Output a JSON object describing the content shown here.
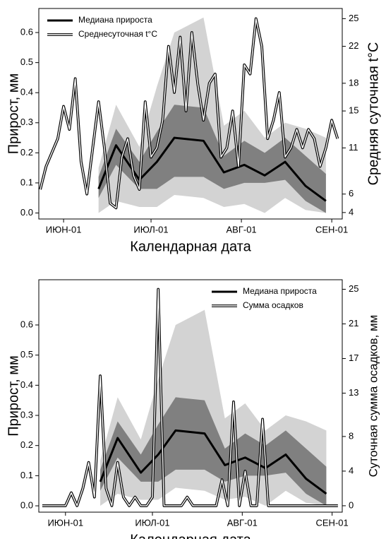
{
  "chart_data": [
    {
      "type": "line",
      "xlabel": "Календарная дата",
      "ylabel": "Прирост, мм",
      "y2label": "Средняя суточная t°C",
      "legend": "upper left",
      "xlim": [
        -8.5,
        95.6
      ],
      "xticks": [
        {
          "value": 0,
          "label": "ИЮН-01"
        },
        {
          "value": 30,
          "label": "ИЮЛ-01"
        },
        {
          "value": 61,
          "label": "АВГ-01"
        },
        {
          "value": 92,
          "label": "СЕН-01"
        }
      ],
      "ylim": [
        -0.02,
        0.68
      ],
      "yticks": [
        {
          "value": 0,
          "label": "0.0"
        },
        0.1,
        0.2,
        0.3,
        0.4,
        0.5,
        0.6
      ],
      "y2lim": [
        3.3,
        26.1
      ],
      "y2ticks": [
        4,
        6,
        11,
        15,
        18,
        22,
        25
      ],
      "bands": [
        {
          "color": "#d3d3d3",
          "x": [
            12,
            18,
            26,
            32,
            38,
            48,
            55,
            62,
            69,
            76,
            83,
            90
          ],
          "lower": [
            0.0,
            0.04,
            0.02,
            0.02,
            0.06,
            0.05,
            0.02,
            0.03,
            0.0,
            0.05,
            0.01,
            0.0
          ],
          "upper": [
            0.15,
            0.36,
            0.22,
            0.42,
            0.6,
            0.65,
            0.29,
            0.34,
            0.25,
            0.3,
            0.28,
            0.25
          ]
        },
        {
          "color": "#808080",
          "x": [
            12,
            18,
            26,
            32,
            38,
            48,
            55,
            62,
            69,
            76,
            83,
            90
          ],
          "lower": [
            0.05,
            0.16,
            0.08,
            0.08,
            0.12,
            0.12,
            0.08,
            0.1,
            0.1,
            0.11,
            0.04,
            0.0
          ],
          "upper": [
            0.12,
            0.28,
            0.17,
            0.27,
            0.36,
            0.35,
            0.19,
            0.24,
            0.2,
            0.25,
            0.19,
            0.13
          ]
        }
      ],
      "series": [
        {
          "name": "Медиана прироста",
          "color": "#000000",
          "width": 3,
          "x": [
            12,
            18,
            26,
            32,
            38,
            48,
            55,
            62,
            69,
            76,
            83,
            90
          ],
          "values": [
            0.08,
            0.225,
            0.11,
            0.17,
            0.25,
            0.24,
            0.135,
            0.16,
            0.125,
            0.17,
            0.09,
            0.04
          ]
        },
        {
          "name": "Среднесуточная t°C",
          "color": "#ffffff",
          "outline": "#000000",
          "width": 1.4,
          "axis": "y2",
          "x": [
            -8,
            -6,
            -4,
            -2,
            0,
            2,
            4,
            6,
            8,
            10,
            12,
            14,
            16,
            18,
            20,
            22,
            24,
            26,
            28,
            30,
            32,
            34,
            36,
            38,
            40,
            42,
            44,
            46,
            48,
            50,
            52,
            54,
            56,
            58,
            60,
            62,
            64,
            66,
            68,
            70,
            72,
            74,
            76,
            78,
            80,
            82,
            84,
            86,
            88,
            90,
            92,
            94
          ],
          "values": [
            6.5,
            9,
            10.5,
            12,
            15.5,
            13,
            18.5,
            9.5,
            6,
            11,
            16,
            11,
            5,
            4.5,
            10,
            12,
            8,
            6.5,
            16,
            10,
            11,
            14,
            22,
            17,
            23,
            15,
            23.5,
            18,
            14,
            18,
            19,
            10,
            11,
            15,
            9,
            20,
            19,
            25,
            22,
            12,
            14,
            17,
            10,
            11,
            13,
            11,
            13,
            12,
            9,
            11,
            14,
            12
          ]
        }
      ]
    },
    {
      "type": "line",
      "xlabel": "Календарная дата",
      "ylabel": "Прирост, мм",
      "y2label": "Суточная сумма осадков, мм",
      "legend": "upper right",
      "xlim": [
        -9.2,
        95.5
      ],
      "xticks": [
        {
          "value": 0,
          "label": "ИЮН-01"
        },
        {
          "value": 30,
          "label": "ИЮЛ-01"
        },
        {
          "value": 61,
          "label": "АВГ-01"
        },
        {
          "value": 92,
          "label": "СЕН-01"
        }
      ],
      "ylim": [
        -0.021,
        0.75
      ],
      "yticks": [
        {
          "value": 0,
          "label": "0.0"
        },
        0.1,
        0.2,
        0.3,
        0.4,
        0.5,
        0.6
      ],
      "y2lim": [
        -0.74,
        26.1
      ],
      "y2ticks": [
        0,
        4,
        8,
        13,
        17,
        21,
        25
      ],
      "bands": [
        {
          "color": "#d3d3d3",
          "x": [
            12,
            18,
            26,
            32,
            38,
            48,
            55,
            62,
            69,
            76,
            83,
            90
          ],
          "lower": [
            0.0,
            0.04,
            0.02,
            0.02,
            0.06,
            0.05,
            0.02,
            0.03,
            0.0,
            0.05,
            0.01,
            0.0
          ],
          "upper": [
            0.15,
            0.36,
            0.22,
            0.42,
            0.6,
            0.65,
            0.29,
            0.34,
            0.25,
            0.3,
            0.28,
            0.25
          ]
        },
        {
          "color": "#808080",
          "x": [
            12,
            18,
            26,
            32,
            38,
            48,
            55,
            62,
            69,
            76,
            83,
            90
          ],
          "lower": [
            0.05,
            0.16,
            0.08,
            0.08,
            0.12,
            0.12,
            0.08,
            0.1,
            0.1,
            0.11,
            0.04,
            0.0
          ],
          "upper": [
            0.12,
            0.28,
            0.17,
            0.27,
            0.36,
            0.35,
            0.19,
            0.24,
            0.2,
            0.25,
            0.19,
            0.13
          ]
        }
      ],
      "series": [
        {
          "name": "Медиана прироста",
          "color": "#000000",
          "width": 3,
          "x": [
            12,
            18,
            26,
            32,
            38,
            48,
            55,
            62,
            69,
            76,
            83,
            90
          ],
          "values": [
            0.08,
            0.225,
            0.11,
            0.17,
            0.25,
            0.24,
            0.135,
            0.16,
            0.125,
            0.17,
            0.09,
            0.04
          ]
        },
        {
          "name": "Сумма осадков",
          "color": "#ffffff",
          "outline": "#000000",
          "width": 1.4,
          "axis": "y2",
          "x": [
            -8,
            -6,
            -4,
            -2,
            0,
            2,
            4,
            6,
            8,
            10,
            12,
            14,
            16,
            18,
            20,
            22,
            24,
            26,
            28,
            30,
            32,
            34,
            36,
            38,
            40,
            42,
            44,
            46,
            48,
            50,
            52,
            54,
            56,
            58,
            60,
            62,
            64,
            66,
            68,
            70,
            72,
            74,
            76,
            78,
            80,
            82,
            84,
            86,
            88,
            90,
            92,
            94
          ],
          "values": [
            0,
            0,
            0,
            0,
            0,
            1.5,
            0,
            2,
            5,
            1,
            15,
            2,
            0,
            5,
            1,
            0,
            1,
            0,
            0,
            1,
            25,
            0,
            0,
            0,
            0,
            1,
            0,
            0,
            0,
            0,
            0,
            3,
            0,
            12,
            0,
            4,
            0,
            0,
            10,
            0,
            0,
            0,
            0,
            0,
            0,
            0,
            0,
            0,
            0,
            0,
            0,
            0
          ]
        }
      ]
    }
  ]
}
